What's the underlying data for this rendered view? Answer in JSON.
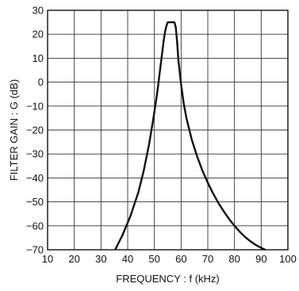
{
  "chart_data": {
    "type": "line",
    "title": "",
    "xlabel": "FREQUENCY : f  (kHz)",
    "ylabel": "FILTER GAIN : G  (dB)",
    "xlim": [
      10,
      100
    ],
    "ylim": [
      -70,
      30
    ],
    "x_ticks": [
      10,
      20,
      30,
      40,
      50,
      60,
      70,
      80,
      90,
      100
    ],
    "y_ticks": [
      30,
      20,
      10,
      0,
      -10,
      -20,
      -30,
      -40,
      -50,
      -60,
      -70
    ],
    "x_tick_labels": [
      "10",
      "20",
      "30",
      "40",
      "50",
      "60",
      "70",
      "80",
      "90",
      "100"
    ],
    "y_tick_labels": [
      "30",
      "20",
      "10",
      "0",
      "−10",
      "−20",
      "−30",
      "−40",
      "−50",
      "−60",
      "−70"
    ],
    "grid": true,
    "series": [
      {
        "x": [
          35.3,
          38,
          41,
          44,
          46,
          48,
          49.5,
          51,
          52,
          53,
          53.5,
          54,
          54.5,
          55,
          55.5,
          56,
          56.5,
          57,
          57.5,
          58,
          58.5,
          59,
          60,
          61,
          62,
          64,
          66,
          68,
          70,
          72,
          74,
          76,
          78,
          80,
          82,
          84,
          86,
          88,
          90,
          91.5
        ],
        "y": [
          -70,
          -64,
          -56,
          -46,
          -37,
          -26,
          -16,
          -5,
          4,
          13,
          17.5,
          21,
          23.5,
          25,
          25,
          25,
          25,
          25,
          25,
          23,
          17,
          9,
          -1,
          -9,
          -15,
          -24,
          -31,
          -37,
          -42,
          -46.5,
          -50.5,
          -54,
          -57.2,
          -60,
          -62.5,
          -64.7,
          -66.5,
          -68,
          -69.2,
          -70
        ]
      }
    ]
  }
}
